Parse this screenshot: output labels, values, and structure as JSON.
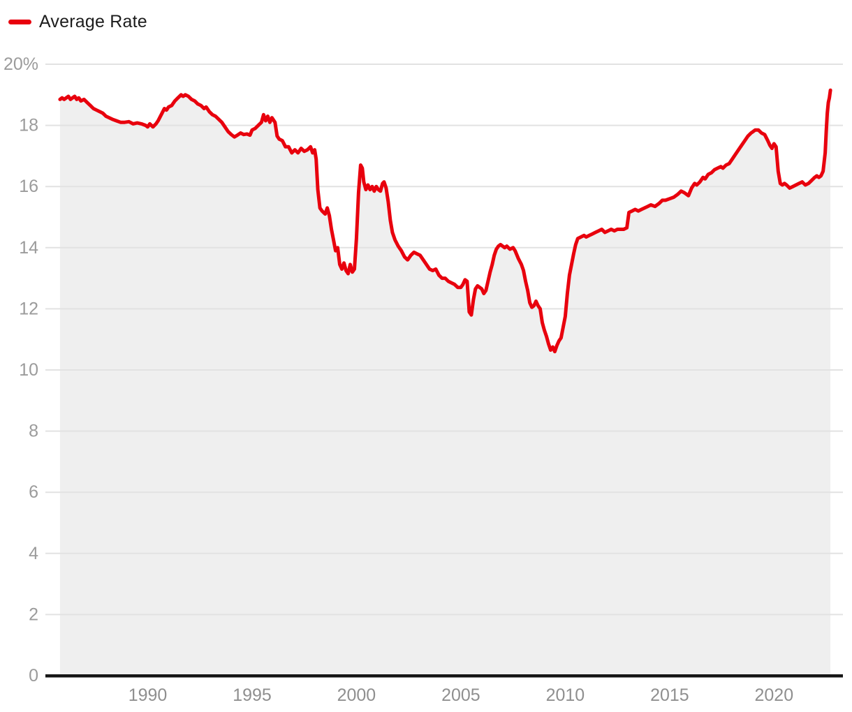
{
  "legend": {
    "label": "Average Rate"
  },
  "colors": {
    "line": "#e8000d",
    "area_fill": "#efefef",
    "grid": "#e2e2e2",
    "axis": "#161616",
    "y_tick_label": "#9b9b9b",
    "x_tick_label": "#8f8f8f",
    "legend_text": "#1c1c1c",
    "background": "#ffffff"
  },
  "chart_data": {
    "type": "line",
    "title": "",
    "xlabel": "",
    "ylabel": "",
    "grid": true,
    "legend_position": "top-left",
    "area_fill": true,
    "xlim": [
      1985.1,
      2023.3
    ],
    "ylim": [
      0,
      20
    ],
    "x_ticks": [
      1990,
      1995,
      2000,
      2005,
      2010,
      2015,
      2020
    ],
    "x_tick_labels": [
      "1990",
      "1995",
      "2000",
      "2005",
      "2010",
      "2015",
      "2020"
    ],
    "y_ticks": [
      0,
      2,
      4,
      6,
      8,
      10,
      12,
      14,
      16,
      18,
      20
    ],
    "y_tick_labels": [
      "0",
      "2",
      "4",
      "6",
      "8",
      "10",
      "12",
      "14",
      "16",
      "18",
      "20%"
    ],
    "series": [
      {
        "name": "Average Rate",
        "x": [
          1985.8,
          1985.9,
          1986.0,
          1986.1,
          1986.2,
          1986.3,
          1986.4,
          1986.5,
          1986.6,
          1986.7,
          1986.8,
          1986.95,
          1987.1,
          1987.25,
          1987.4,
          1987.55,
          1987.7,
          1987.85,
          1988.0,
          1988.15,
          1988.3,
          1988.5,
          1988.7,
          1988.9,
          1989.1,
          1989.3,
          1989.5,
          1989.7,
          1989.9,
          1990.0,
          1990.1,
          1990.25,
          1990.4,
          1990.5,
          1990.65,
          1990.8,
          1990.9,
          1991.0,
          1991.15,
          1991.3,
          1991.45,
          1991.6,
          1991.7,
          1991.8,
          1991.95,
          1992.1,
          1992.25,
          1992.4,
          1992.55,
          1992.7,
          1992.8,
          1992.95,
          1993.1,
          1993.25,
          1993.4,
          1993.55,
          1993.7,
          1993.85,
          1994.0,
          1994.15,
          1994.3,
          1994.45,
          1994.6,
          1994.75,
          1994.9,
          1995.0,
          1995.15,
          1995.3,
          1995.45,
          1995.55,
          1995.65,
          1995.75,
          1995.85,
          1995.95,
          1996.1,
          1996.2,
          1996.3,
          1996.45,
          1996.6,
          1996.75,
          1996.9,
          1997.05,
          1997.2,
          1997.35,
          1997.5,
          1997.65,
          1997.8,
          1997.9,
          1998.0,
          1998.07,
          1998.15,
          1998.25,
          1998.35,
          1998.5,
          1998.6,
          1998.7,
          1998.8,
          1998.9,
          1999.0,
          1999.1,
          1999.2,
          1999.3,
          1999.4,
          1999.5,
          1999.6,
          1999.7,
          1999.8,
          1999.9,
          2000.0,
          2000.1,
          2000.2,
          2000.28,
          2000.35,
          2000.45,
          2000.55,
          2000.65,
          2000.75,
          2000.85,
          2000.95,
          2001.05,
          2001.15,
          2001.25,
          2001.32,
          2001.42,
          2001.52,
          2001.62,
          2001.72,
          2001.85,
          2002.0,
          2002.15,
          2002.3,
          2002.45,
          2002.6,
          2002.75,
          2002.9,
          2003.05,
          2003.2,
          2003.35,
          2003.5,
          2003.65,
          2003.8,
          2003.95,
          2004.1,
          2004.25,
          2004.4,
          2004.55,
          2004.7,
          2004.85,
          2005.0,
          2005.1,
          2005.2,
          2005.3,
          2005.4,
          2005.5,
          2005.6,
          2005.7,
          2005.8,
          2005.9,
          2006.0,
          2006.1,
          2006.2,
          2006.3,
          2006.4,
          2006.5,
          2006.6,
          2006.7,
          2006.8,
          2006.9,
          2007.0,
          2007.1,
          2007.2,
          2007.35,
          2007.5,
          2007.6,
          2007.75,
          2007.9,
          2008.0,
          2008.1,
          2008.2,
          2008.3,
          2008.4,
          2008.5,
          2008.6,
          2008.7,
          2008.8,
          2008.9,
          2009.0,
          2009.1,
          2009.2,
          2009.3,
          2009.4,
          2009.5,
          2009.6,
          2009.7,
          2009.8,
          2009.9,
          2010.0,
          2010.1,
          2010.2,
          2010.3,
          2010.4,
          2010.5,
          2010.6,
          2010.75,
          2010.9,
          2011.0,
          2011.15,
          2011.3,
          2011.45,
          2011.6,
          2011.75,
          2011.9,
          2012.05,
          2012.2,
          2012.35,
          2012.5,
          2012.65,
          2012.8,
          2012.95,
          2013.05,
          2013.2,
          2013.35,
          2013.5,
          2013.65,
          2013.8,
          2013.95,
          2014.1,
          2014.3,
          2014.5,
          2014.65,
          2014.8,
          2015.0,
          2015.2,
          2015.4,
          2015.55,
          2015.7,
          2015.9,
          2016.05,
          2016.2,
          2016.3,
          2016.45,
          2016.6,
          2016.7,
          2016.85,
          2017.0,
          2017.15,
          2017.3,
          2017.45,
          2017.55,
          2017.7,
          2017.85,
          2018.0,
          2018.15,
          2018.3,
          2018.45,
          2018.6,
          2018.75,
          2018.9,
          2019.0,
          2019.1,
          2019.25,
          2019.4,
          2019.55,
          2019.7,
          2019.8,
          2019.9,
          2020.0,
          2020.1,
          2020.2,
          2020.3,
          2020.4,
          2020.5,
          2020.6,
          2020.75,
          2020.9,
          2021.05,
          2021.2,
          2021.35,
          2021.5,
          2021.65,
          2021.8,
          2021.95,
          2022.05,
          2022.15,
          2022.25,
          2022.35,
          2022.45,
          2022.5,
          2022.55,
          2022.6,
          2022.65,
          2022.7
        ],
        "y": [
          18.85,
          18.9,
          18.85,
          18.9,
          18.95,
          18.85,
          18.9,
          18.95,
          18.85,
          18.9,
          18.8,
          18.85,
          18.75,
          18.65,
          18.55,
          18.5,
          18.45,
          18.4,
          18.3,
          18.25,
          18.2,
          18.15,
          18.1,
          18.1,
          18.12,
          18.05,
          18.08,
          18.05,
          18.0,
          17.95,
          18.05,
          17.95,
          18.05,
          18.15,
          18.35,
          18.55,
          18.5,
          18.6,
          18.65,
          18.8,
          18.9,
          19.0,
          18.95,
          19.0,
          18.95,
          18.85,
          18.8,
          18.7,
          18.65,
          18.55,
          18.6,
          18.45,
          18.35,
          18.3,
          18.2,
          18.1,
          17.95,
          17.8,
          17.7,
          17.62,
          17.68,
          17.75,
          17.7,
          17.72,
          17.68,
          17.85,
          17.9,
          18.0,
          18.1,
          18.35,
          18.15,
          18.3,
          18.1,
          18.25,
          18.1,
          17.65,
          17.55,
          17.5,
          17.3,
          17.3,
          17.1,
          17.2,
          17.1,
          17.25,
          17.15,
          17.2,
          17.3,
          17.1,
          17.2,
          16.9,
          15.9,
          15.3,
          15.2,
          15.1,
          15.3,
          15.05,
          14.6,
          14.25,
          13.9,
          14.0,
          13.45,
          13.3,
          13.5,
          13.25,
          13.15,
          13.45,
          13.2,
          13.3,
          14.3,
          15.8,
          16.7,
          16.6,
          16.15,
          15.9,
          16.05,
          15.9,
          16.0,
          15.85,
          16.0,
          15.9,
          15.85,
          16.1,
          16.15,
          15.95,
          15.5,
          14.9,
          14.5,
          14.25,
          14.05,
          13.9,
          13.7,
          13.6,
          13.75,
          13.85,
          13.8,
          13.75,
          13.6,
          13.45,
          13.3,
          13.25,
          13.3,
          13.1,
          13.0,
          13.0,
          12.9,
          12.85,
          12.8,
          12.7,
          12.7,
          12.8,
          12.95,
          12.9,
          11.9,
          11.8,
          12.3,
          12.65,
          12.75,
          12.7,
          12.65,
          12.5,
          12.6,
          12.9,
          13.2,
          13.45,
          13.75,
          13.95,
          14.05,
          14.1,
          14.05,
          14.0,
          14.05,
          13.95,
          14.0,
          13.9,
          13.65,
          13.45,
          13.25,
          12.9,
          12.6,
          12.2,
          12.05,
          12.1,
          12.25,
          12.1,
          12.0,
          11.55,
          11.3,
          11.1,
          10.85,
          10.65,
          10.75,
          10.6,
          10.8,
          10.95,
          11.05,
          11.4,
          11.75,
          12.5,
          13.1,
          13.45,
          13.8,
          14.1,
          14.3,
          14.35,
          14.4,
          14.35,
          14.4,
          14.45,
          14.5,
          14.55,
          14.6,
          14.5,
          14.55,
          14.6,
          14.55,
          14.6,
          14.6,
          14.6,
          14.65,
          15.15,
          15.2,
          15.25,
          15.2,
          15.25,
          15.3,
          15.35,
          15.4,
          15.35,
          15.45,
          15.55,
          15.55,
          15.6,
          15.65,
          15.75,
          15.85,
          15.8,
          15.7,
          15.95,
          16.1,
          16.05,
          16.15,
          16.3,
          16.25,
          16.4,
          16.45,
          16.55,
          16.6,
          16.65,
          16.6,
          16.7,
          16.75,
          16.9,
          17.05,
          17.2,
          17.35,
          17.5,
          17.65,
          17.75,
          17.8,
          17.85,
          17.85,
          17.75,
          17.7,
          17.5,
          17.35,
          17.25,
          17.4,
          17.3,
          16.5,
          16.1,
          16.05,
          16.1,
          16.05,
          15.95,
          16.0,
          16.05,
          16.1,
          16.15,
          16.05,
          16.1,
          16.2,
          16.3,
          16.35,
          16.3,
          16.35,
          16.5,
          17.1,
          17.8,
          18.4,
          18.75,
          18.9,
          19.15
        ]
      }
    ]
  }
}
